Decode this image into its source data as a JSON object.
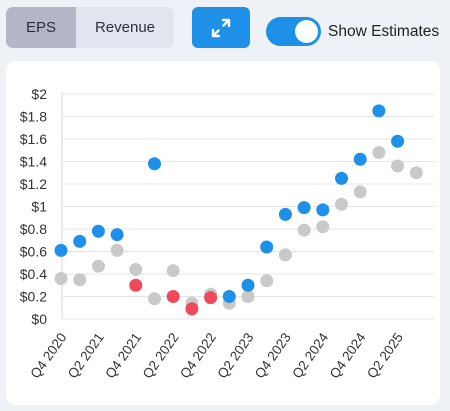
{
  "toolbar": {
    "segments": [
      {
        "label": "EPS",
        "active": true
      },
      {
        "label": "Revenue",
        "active": false
      }
    ],
    "expand_icon": "expand-arrows-icon",
    "toggle": {
      "label": "Show Estimates",
      "on": true
    }
  },
  "colors": {
    "accent": "#1e90e8",
    "actual_beat": "#1e90e8",
    "actual_miss": "#f04a5a",
    "estimate": "#c9c9c9"
  },
  "chart_data": {
    "type": "scatter",
    "y_ticks": [
      "$2",
      "$1.8",
      "$1.6",
      "$1.4",
      "$1.2",
      "$1",
      "$0.8",
      "$0.6",
      "$0.4",
      "$0.2",
      "$0"
    ],
    "ylim": [
      0,
      2
    ],
    "x_tick_labels": [
      "Q4 2020",
      "Q2 2021",
      "Q4 2021",
      "Q2 2022",
      "Q4 2022",
      "Q2 2023",
      "Q4 2023",
      "Q2 2024",
      "Q4 2024",
      "Q2 2025"
    ],
    "grid": true,
    "quarters": [
      "Q4 2020",
      "Q1 2021",
      "Q2 2021",
      "Q3 2021",
      "Q4 2021",
      "Q1 2022",
      "Q2 2022",
      "Q3 2022",
      "Q4 2022",
      "Q1 2023",
      "Q2 2023",
      "Q3 2023",
      "Q4 2023",
      "Q1 2024",
      "Q2 2024",
      "Q3 2024",
      "Q4 2024",
      "Q1 2025",
      "Q2 2025",
      "Q3 2025"
    ],
    "estimates": [
      0.36,
      0.35,
      0.47,
      0.61,
      0.44,
      0.18,
      0.43,
      0.14,
      0.22,
      0.14,
      0.2,
      0.34,
      0.57,
      0.79,
      0.82,
      1.02,
      1.13,
      1.48,
      1.36,
      1.3
    ],
    "actuals": [
      0.61,
      0.69,
      0.78,
      0.75,
      0.3,
      1.38,
      0.2,
      0.09,
      0.19,
      0.2,
      0.3,
      0.64,
      0.93,
      0.99,
      0.97,
      1.25,
      1.42,
      1.85,
      1.58,
      null
    ]
  }
}
